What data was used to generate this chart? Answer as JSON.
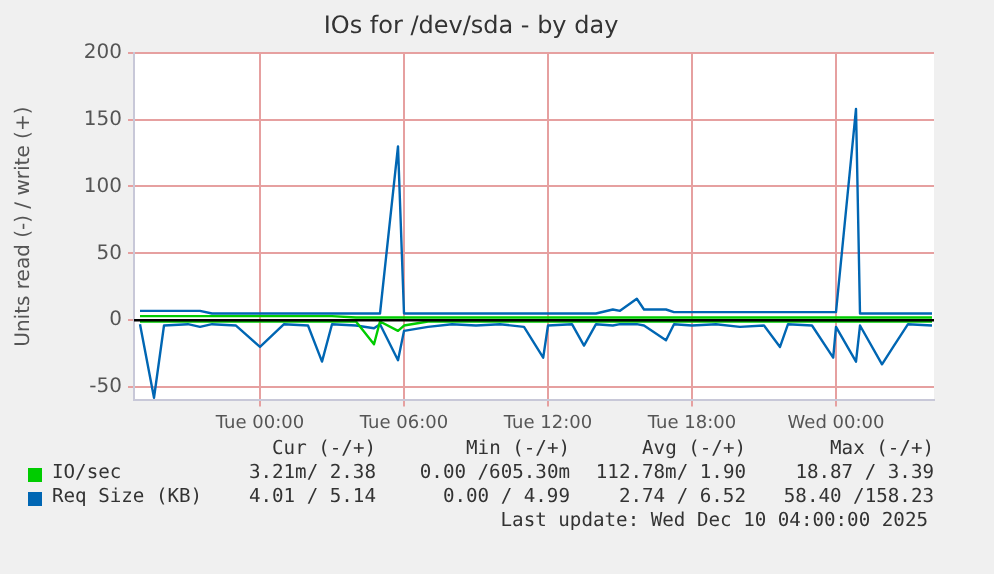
{
  "chart_data": {
    "type": "line",
    "title": "IOs for /dev/sda - by day",
    "ylabel": "Units read (-) / write (+)",
    "x": [
      "2025-12-08T19:00",
      "2025-12-08T19:35",
      "2025-12-08T20:00",
      "2025-12-08T21:00",
      "2025-12-08T21:30",
      "2025-12-08T22:00",
      "2025-12-08T23:00",
      "2025-12-09T00:00",
      "2025-12-09T01:00",
      "2025-12-09T02:00",
      "2025-12-09T02:35",
      "2025-12-09T03:00",
      "2025-12-09T04:00",
      "2025-12-09T04:45",
      "2025-12-09T05:00",
      "2025-12-09T05:45",
      "2025-12-09T06:00",
      "2025-12-09T07:00",
      "2025-12-09T08:00",
      "2025-12-09T09:00",
      "2025-12-09T10:00",
      "2025-12-09T11:00",
      "2025-12-09T11:48",
      "2025-12-09T12:00",
      "2025-12-09T13:00",
      "2025-12-09T13:30",
      "2025-12-09T14:00",
      "2025-12-09T14:42",
      "2025-12-09T15:00",
      "2025-12-09T15:42",
      "2025-12-09T16:00",
      "2025-12-09T16:55",
      "2025-12-09T17:15",
      "2025-12-09T18:00",
      "2025-12-09T19:00",
      "2025-12-09T20:00",
      "2025-12-09T21:00",
      "2025-12-09T21:40",
      "2025-12-09T22:00",
      "2025-12-09T23:00",
      "2025-12-09T23:53",
      "2025-12-10T00:00",
      "2025-12-10T00:50",
      "2025-12-10T01:00",
      "2025-12-10T01:55",
      "2025-12-10T02:23",
      "2025-12-10T03:00",
      "2025-12-10T04:00"
    ],
    "series": [
      {
        "name": "IO/sec",
        "color": "#00cc00",
        "values": [
          3,
          3,
          3,
          3,
          3,
          3,
          3,
          3,
          3,
          3,
          3,
          3,
          2,
          2,
          2,
          2,
          2,
          2,
          2,
          2,
          2,
          2,
          2,
          2,
          2,
          2,
          2,
          2,
          2,
          2,
          2,
          2,
          2,
          2,
          2,
          2,
          2,
          2,
          2,
          2,
          2,
          2,
          2,
          2,
          2,
          2,
          2,
          2
        ]
      },
      {
        "name": "Req Size (KB)",
        "color": "#0066b3",
        "values": [
          7,
          7,
          7,
          7,
          7,
          5,
          5,
          5,
          5,
          5,
          5,
          5,
          5,
          5,
          5,
          130,
          5,
          5,
          5,
          5,
          5,
          5,
          5,
          5,
          5,
          5,
          5,
          8,
          7,
          16,
          8,
          8,
          6,
          6,
          6,
          6,
          6,
          6,
          6,
          6,
          6,
          6,
          158,
          5,
          5,
          5,
          5,
          5
        ]
      },
      {
        "color": "#00cc00",
        "values": [
          -1,
          -1,
          -1,
          -1,
          -1,
          -1,
          -1,
          -1,
          -1,
          -1,
          -1,
          -1,
          -1,
          -18,
          -1,
          -8,
          -4,
          -1,
          -1,
          -1,
          -1,
          -1,
          -1,
          -1,
          -1,
          -1,
          -1,
          -1,
          -1,
          -1,
          -1,
          -1,
          -1,
          -1,
          -1,
          -1,
          -1,
          -1,
          -1,
          -1,
          -1,
          -1,
          -1,
          -1,
          -1,
          -1,
          -1,
          -1
        ]
      },
      {
        "color": "#0066b3",
        "values": [
          -3,
          -58,
          -4,
          -3,
          -5,
          -3,
          -4,
          -20,
          -3,
          -4,
          -31,
          -3,
          -4,
          -6,
          -3,
          -30,
          -8,
          -5,
          -3,
          -4,
          -3,
          -5,
          -28,
          -4,
          -3,
          -19,
          -3,
          -4,
          -3,
          -3,
          -4,
          -15,
          -3,
          -4,
          -3,
          -5,
          -4,
          -20,
          -3,
          -4,
          -28,
          -5,
          -31,
          -4,
          -33,
          -20,
          -3,
          -4
        ]
      }
    ],
    "xlim": [
      "2025-12-08T18:45",
      "2025-12-10T04:05"
    ],
    "xticks": [
      {
        "value": "2025-12-09T00:00",
        "label": "Tue 00:00"
      },
      {
        "value": "2025-12-09T06:00",
        "label": "Tue 06:00"
      },
      {
        "value": "2025-12-09T12:00",
        "label": "Tue 12:00"
      },
      {
        "value": "2025-12-09T18:00",
        "label": "Tue 18:00"
      },
      {
        "value": "2025-12-10T00:00",
        "label": "Wed 00:00"
      }
    ],
    "ylim": [
      -60,
      200
    ],
    "yticks": [
      -50,
      0,
      50,
      100,
      150,
      200
    ],
    "grid": true,
    "legend": "bottom",
    "marker": "none",
    "line_style": "solid",
    "ref_lines": [
      {
        "axis": "y",
        "value": 0,
        "color": "#000000"
      }
    ],
    "annotations": [
      "Cur (-/+)",
      "Min (-/+)",
      "Avg (-/+)",
      "Max (-/+)",
      "3.21m/ 2.38",
      "0.00 /605.30m",
      "112.78m/ 1.90",
      "18.87 / 3.39",
      "4.01 / 5.14",
      "0.00 / 4.99",
      "2.74 / 6.52",
      "58.40 /158.23",
      "Last update: Wed Dec 10 04:00:00 2025"
    ]
  }
}
